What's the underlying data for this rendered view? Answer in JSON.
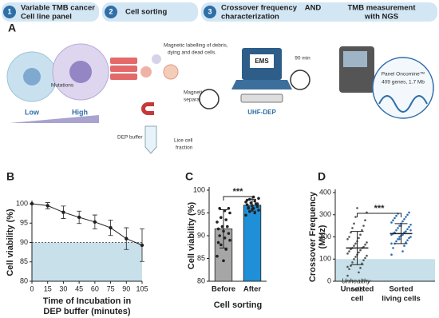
{
  "panel_a": {
    "label": "A",
    "steps": [
      {
        "number": "1",
        "lines": [
          "Variable TMB cancer",
          "Cell line panel"
        ]
      },
      {
        "number": "2",
        "lines": [
          "Cell sorting"
        ]
      },
      {
        "number": "3",
        "lines": [
          "Crossover frequency",
          "characterization"
        ]
      },
      {
        "lines": [
          "TMB measurement",
          "with NGS"
        ]
      }
    ],
    "joiner": "AND",
    "mutations": "Mutations",
    "low": "Low",
    "high": "High",
    "sorting": [
      "Magnetic labelling of debris,",
      "dying and dead cells."
    ],
    "separation": [
      "Magnetic",
      "separation"
    ],
    "buffer": "DEP buffer",
    "fraction": [
      "Lice cell",
      "fraction"
    ],
    "ems": "EMS",
    "uhf": "UHF-DEP",
    "time": "90 min",
    "ngs": [
      "Panel Oncomine™",
      "409 genes, 1.7 Mb"
    ]
  },
  "chart_data": [
    {
      "type": "line",
      "label": "B",
      "x": [
        0,
        15,
        30,
        45,
        60,
        75,
        90,
        105
      ],
      "values": [
        100,
        99.5,
        97.8,
        96.5,
        95.3,
        93.8,
        91,
        89.3
      ],
      "errors": [
        0,
        0.8,
        1.6,
        1.6,
        1.8,
        2,
        2.8,
        4.2
      ],
      "xlim": [
        0,
        105
      ],
      "xticks": [
        0,
        15,
        30,
        45,
        60,
        75,
        90,
        105
      ],
      "ylim": [
        80,
        100
      ],
      "yticks": [
        80,
        85,
        90,
        95,
        100
      ],
      "ylabel": [
        "Cell viability (%)"
      ],
      "xlabel": [
        "Time of Incubation in",
        "DEP buffer (minutes)"
      ],
      "threshold": 90,
      "color": "#222222",
      "shade_color": "#c7e0ea"
    },
    {
      "type": "bar",
      "label": "C",
      "categories": [
        [
          "Before"
        ],
        [
          "After"
        ]
      ],
      "values": [
        91.5,
        96.7
      ],
      "errors": [
        4.2,
        1.3
      ],
      "colors": [
        "#a6a6a6",
        "#1f90d8"
      ],
      "points": [
        [
          85.5,
          87,
          88,
          89,
          89.5,
          90,
          90.5,
          91,
          91.5,
          92,
          92,
          93,
          93.5,
          94,
          95,
          95.5,
          96,
          96,
          84.5,
          88.5
        ],
        [
          94.5,
          95,
          95.3,
          95.6,
          96,
          96.2,
          96.4,
          96.6,
          96.8,
          97,
          97.2,
          97.4,
          97.6,
          98,
          98.2,
          98.5,
          96,
          97,
          95.8,
          97.8
        ]
      ],
      "ylim": [
        80,
        100
      ],
      "yticks": [
        80,
        85,
        90,
        95,
        100
      ],
      "ylabel": [
        "Cell viability (%)"
      ],
      "xlabel": [
        "Cell sorting"
      ],
      "significance": "***"
    },
    {
      "type": "scatter",
      "label": "D",
      "categories": [
        [
          "Unsorted",
          "cell"
        ],
        [
          "Sorted",
          "living cells"
        ]
      ],
      "values": [
        150,
        215
      ],
      "errors": [
        75,
        45
      ],
      "colors": [
        "#555555",
        "#2a6db0"
      ],
      "points": [
        [
          25,
          40,
          55,
          60,
          70,
          80,
          85,
          95,
          100,
          105,
          110,
          115,
          120,
          125,
          130,
          135,
          140,
          145,
          150,
          150,
          155,
          160,
          165,
          170,
          175,
          180,
          190,
          195,
          200,
          210,
          220,
          230,
          240,
          250,
          260,
          275,
          290,
          310,
          330,
          65
        ],
        [
          120,
          135,
          150,
          160,
          170,
          175,
          180,
          185,
          190,
          195,
          200,
          200,
          205,
          210,
          210,
          215,
          220,
          220,
          225,
          230,
          235,
          240,
          245,
          250,
          255,
          260,
          265,
          270,
          275,
          280,
          285,
          290,
          295,
          300,
          305,
          310,
          190,
          230,
          250,
          170
        ]
      ],
      "ylim": [
        0,
        400
      ],
      "yticks": [
        0,
        100,
        200,
        300,
        400
      ],
      "ylabel": [
        "Crossover Frequency",
        "(MHz)"
      ],
      "significance": "***",
      "threshold": 100,
      "threshold_label": [
        "Unhealthy",
        "cells"
      ],
      "shade_color": "#c7e0ea"
    }
  ]
}
